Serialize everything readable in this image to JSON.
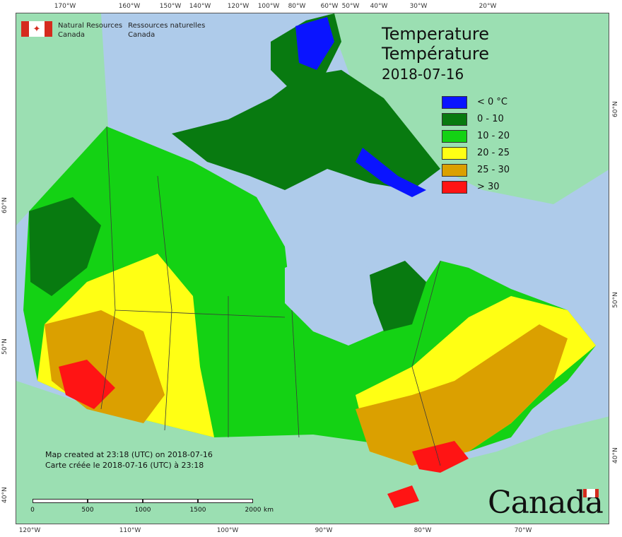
{
  "agency": {
    "en_line1": "Natural Resources",
    "en_line2": "Canada",
    "fr_line1": "Ressources naturelles",
    "fr_line2": "Canada"
  },
  "title": {
    "en": "Temperature",
    "fr": "Température",
    "date": "2018-07-16"
  },
  "legend": [
    {
      "label": "< 0 °C",
      "color": "#0a14ff"
    },
    {
      "label": "0 - 10",
      "color": "#087a10"
    },
    {
      "label": "10 - 20",
      "color": "#14d214"
    },
    {
      "label": "20 - 25",
      "color": "#ffff14"
    },
    {
      "label": "25 - 30",
      "color": "#dba000"
    },
    {
      "label": "> 30",
      "color": "#ff1414"
    }
  ],
  "colors": {
    "water": "#aecbea",
    "foreign_land": "#9bdfb2",
    "border": "#3a3a3a"
  },
  "created": {
    "en": "Map created at 23:18 (UTC) on 2018-07-16",
    "fr": "Carte créée le 2018-07-16 (UTC) à 23:18"
  },
  "scale": {
    "labels": [
      "0",
      "500",
      "1000",
      "1500",
      "2000",
      "km"
    ]
  },
  "graticule": {
    "top": [
      "170°W",
      "160°W",
      "150°W",
      "140°W",
      "120°W",
      "100°W",
      "80°W",
      "60°W",
      "50°W",
      "40°W",
      "30°W",
      "20°W"
    ],
    "bottom": [
      "120°W",
      "110°W",
      "100°W",
      "90°W",
      "80°W",
      "70°W"
    ],
    "left": [
      "60°N",
      "50°N",
      "40°N"
    ],
    "right": [
      "60°N",
      "50°N",
      "40°N"
    ]
  },
  "wordmark": "Canada"
}
